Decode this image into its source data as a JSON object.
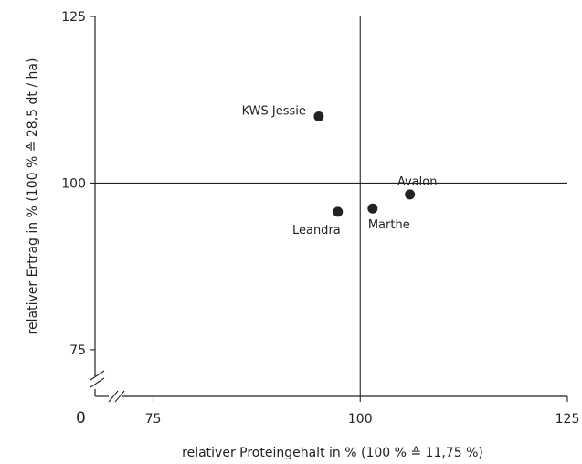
{
  "chart_data": {
    "type": "scatter",
    "xlabel": "relativer Proteingehalt in % (100 % ≙ 11,75 %)",
    "ylabel": "relativer Ertrag in % (100 % ≙  28,5 dt / ha)",
    "origin_label": "0",
    "xlim": [
      68,
      125
    ],
    "ylim": [
      68,
      125
    ],
    "x_axis_break": true,
    "y_axis_break": true,
    "x_ticks": [
      75,
      100,
      125
    ],
    "y_ticks": [
      75,
      100,
      125
    ],
    "reference_lines": {
      "x": 100,
      "y": 100
    },
    "grid": false,
    "colors": {
      "points": "#222222",
      "lines": "#222222"
    },
    "points": [
      {
        "label": "KWS Jessie",
        "x": 95.0,
        "y": 110.0
      },
      {
        "label": "Avalon",
        "x": 106.0,
        "y": 98.3
      },
      {
        "label": "Marthe",
        "x": 101.5,
        "y": 96.2
      },
      {
        "label": "Leandra",
        "x": 97.3,
        "y": 95.7
      }
    ]
  }
}
